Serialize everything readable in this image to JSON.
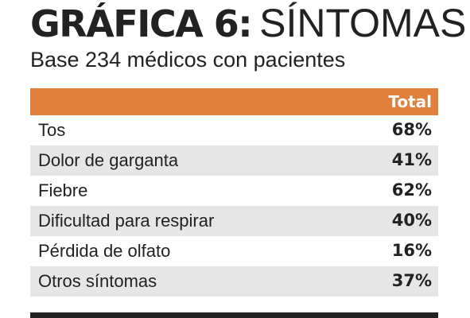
{
  "title_strong": "GRÁFICA 6:",
  "title_light": "SÍNTOMAS",
  "subtitle": "Base 234 médicos con pacientes",
  "colors": {
    "header": "#e07f3c",
    "shaded_row": "#e6e6e6",
    "text": "#222222"
  },
  "chart_data": {
    "type": "table",
    "title": "GRÁFICA 6: SÍNTOMAS",
    "subtitle": "Base 234 médicos con pacientes",
    "columns": [
      "",
      "Total"
    ],
    "rows": [
      {
        "label": "Tos",
        "value": "68%"
      },
      {
        "label": "Dolor de garganta",
        "value": "41%"
      },
      {
        "label": "Fiebre",
        "value": "62%"
      },
      {
        "label": "Dificultad para respirar",
        "value": "40%"
      },
      {
        "label": "Pérdida de olfato",
        "value": "16%"
      },
      {
        "label": "Otros síntomas",
        "value": "37%"
      }
    ]
  }
}
